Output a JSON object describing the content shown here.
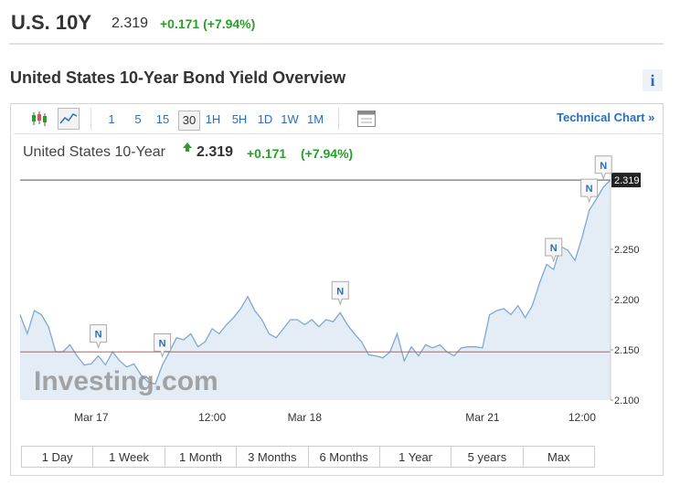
{
  "header": {
    "symbol": "U.S. 10Y",
    "price": "2.319",
    "change": "+0.171 (+7.94%)"
  },
  "section_title": "United States 10-Year Bond Yield Overview",
  "info_icon": "i",
  "toolbar": {
    "intervals": [
      "1",
      "5",
      "15",
      "30",
      "1H",
      "5H",
      "1D",
      "1W",
      "1M"
    ],
    "selected": "30",
    "technical_chart": "Technical Chart »"
  },
  "ranges": [
    "1 Day",
    "1 Week",
    "1 Month",
    "3 Months",
    "6 Months",
    "1 Year",
    "5 years",
    "Max"
  ],
  "chart_data": {
    "type": "area",
    "title": "United States 10-Year",
    "last": "2.319",
    "change": "+0.171",
    "change_pct": "(+7.94%)",
    "watermark": "Investing.com",
    "categories": [
      null,
      null,
      null,
      null,
      null,
      null,
      null,
      null,
      null,
      null,
      "Mar 17",
      null,
      null,
      null,
      null,
      null,
      null,
      null,
      null,
      null,
      null,
      null,
      null,
      null,
      null,
      null,
      null,
      "12:00",
      null,
      null,
      null,
      null,
      null,
      null,
      null,
      null,
      null,
      null,
      null,
      null,
      "Mar 18",
      null,
      null,
      null,
      null,
      null,
      null,
      null,
      null,
      null,
      null,
      null,
      null,
      null,
      null,
      null,
      null,
      null,
      null,
      null,
      null,
      null,
      null,
      null,
      null,
      "Mar 21",
      null,
      null,
      null,
      null,
      null,
      null,
      null,
      null,
      null,
      null,
      null,
      null,
      null,
      "12:00",
      null,
      null,
      null,
      null
    ],
    "values": [
      2.185,
      2.166,
      2.189,
      2.185,
      2.173,
      2.148,
      2.148,
      2.155,
      2.144,
      2.135,
      2.136,
      2.144,
      2.135,
      2.148,
      2.139,
      2.133,
      2.136,
      2.125,
      2.118,
      2.116,
      2.135,
      2.148,
      2.162,
      2.16,
      2.166,
      2.153,
      2.158,
      2.171,
      2.166,
      2.175,
      2.182,
      2.191,
      2.203,
      2.189,
      2.18,
      2.166,
      2.162,
      2.171,
      2.18,
      2.18,
      2.175,
      2.18,
      2.173,
      2.18,
      2.178,
      2.187,
      2.175,
      2.166,
      2.158,
      2.145,
      2.144,
      2.142,
      2.148,
      2.166,
      2.139,
      2.153,
      2.144,
      2.155,
      2.152,
      2.155,
      2.148,
      2.144,
      2.152,
      2.153,
      2.153,
      2.152,
      2.185,
      2.189,
      2.191,
      2.185,
      2.194,
      2.182,
      2.194,
      2.216,
      2.235,
      2.23,
      2.253,
      2.249,
      2.239,
      2.262,
      2.289,
      2.3,
      2.312,
      2.319
    ],
    "line_color": "#7fa8cf",
    "fill_color": "#e4edf6",
    "ylim": [
      2.1,
      2.33
    ],
    "yticks": [
      {
        "value": 2.1,
        "label": "2.100"
      },
      {
        "value": 2.15,
        "label": "2.150"
      },
      {
        "value": 2.2,
        "label": "2.200"
      },
      {
        "value": 2.25,
        "label": "2.250"
      }
    ],
    "current": {
      "value": 2.319,
      "label": "2.319"
    },
    "previous_close": 2.148,
    "previous_close_color": "#d9534f",
    "events": [
      {
        "label": "N",
        "at": 11
      },
      {
        "label": "N",
        "at": 20
      },
      {
        "label": "N",
        "at": 45
      },
      {
        "label": "N",
        "at": 75
      },
      {
        "label": "N",
        "at": 80
      },
      {
        "label": "N",
        "at": 82
      }
    ]
  }
}
